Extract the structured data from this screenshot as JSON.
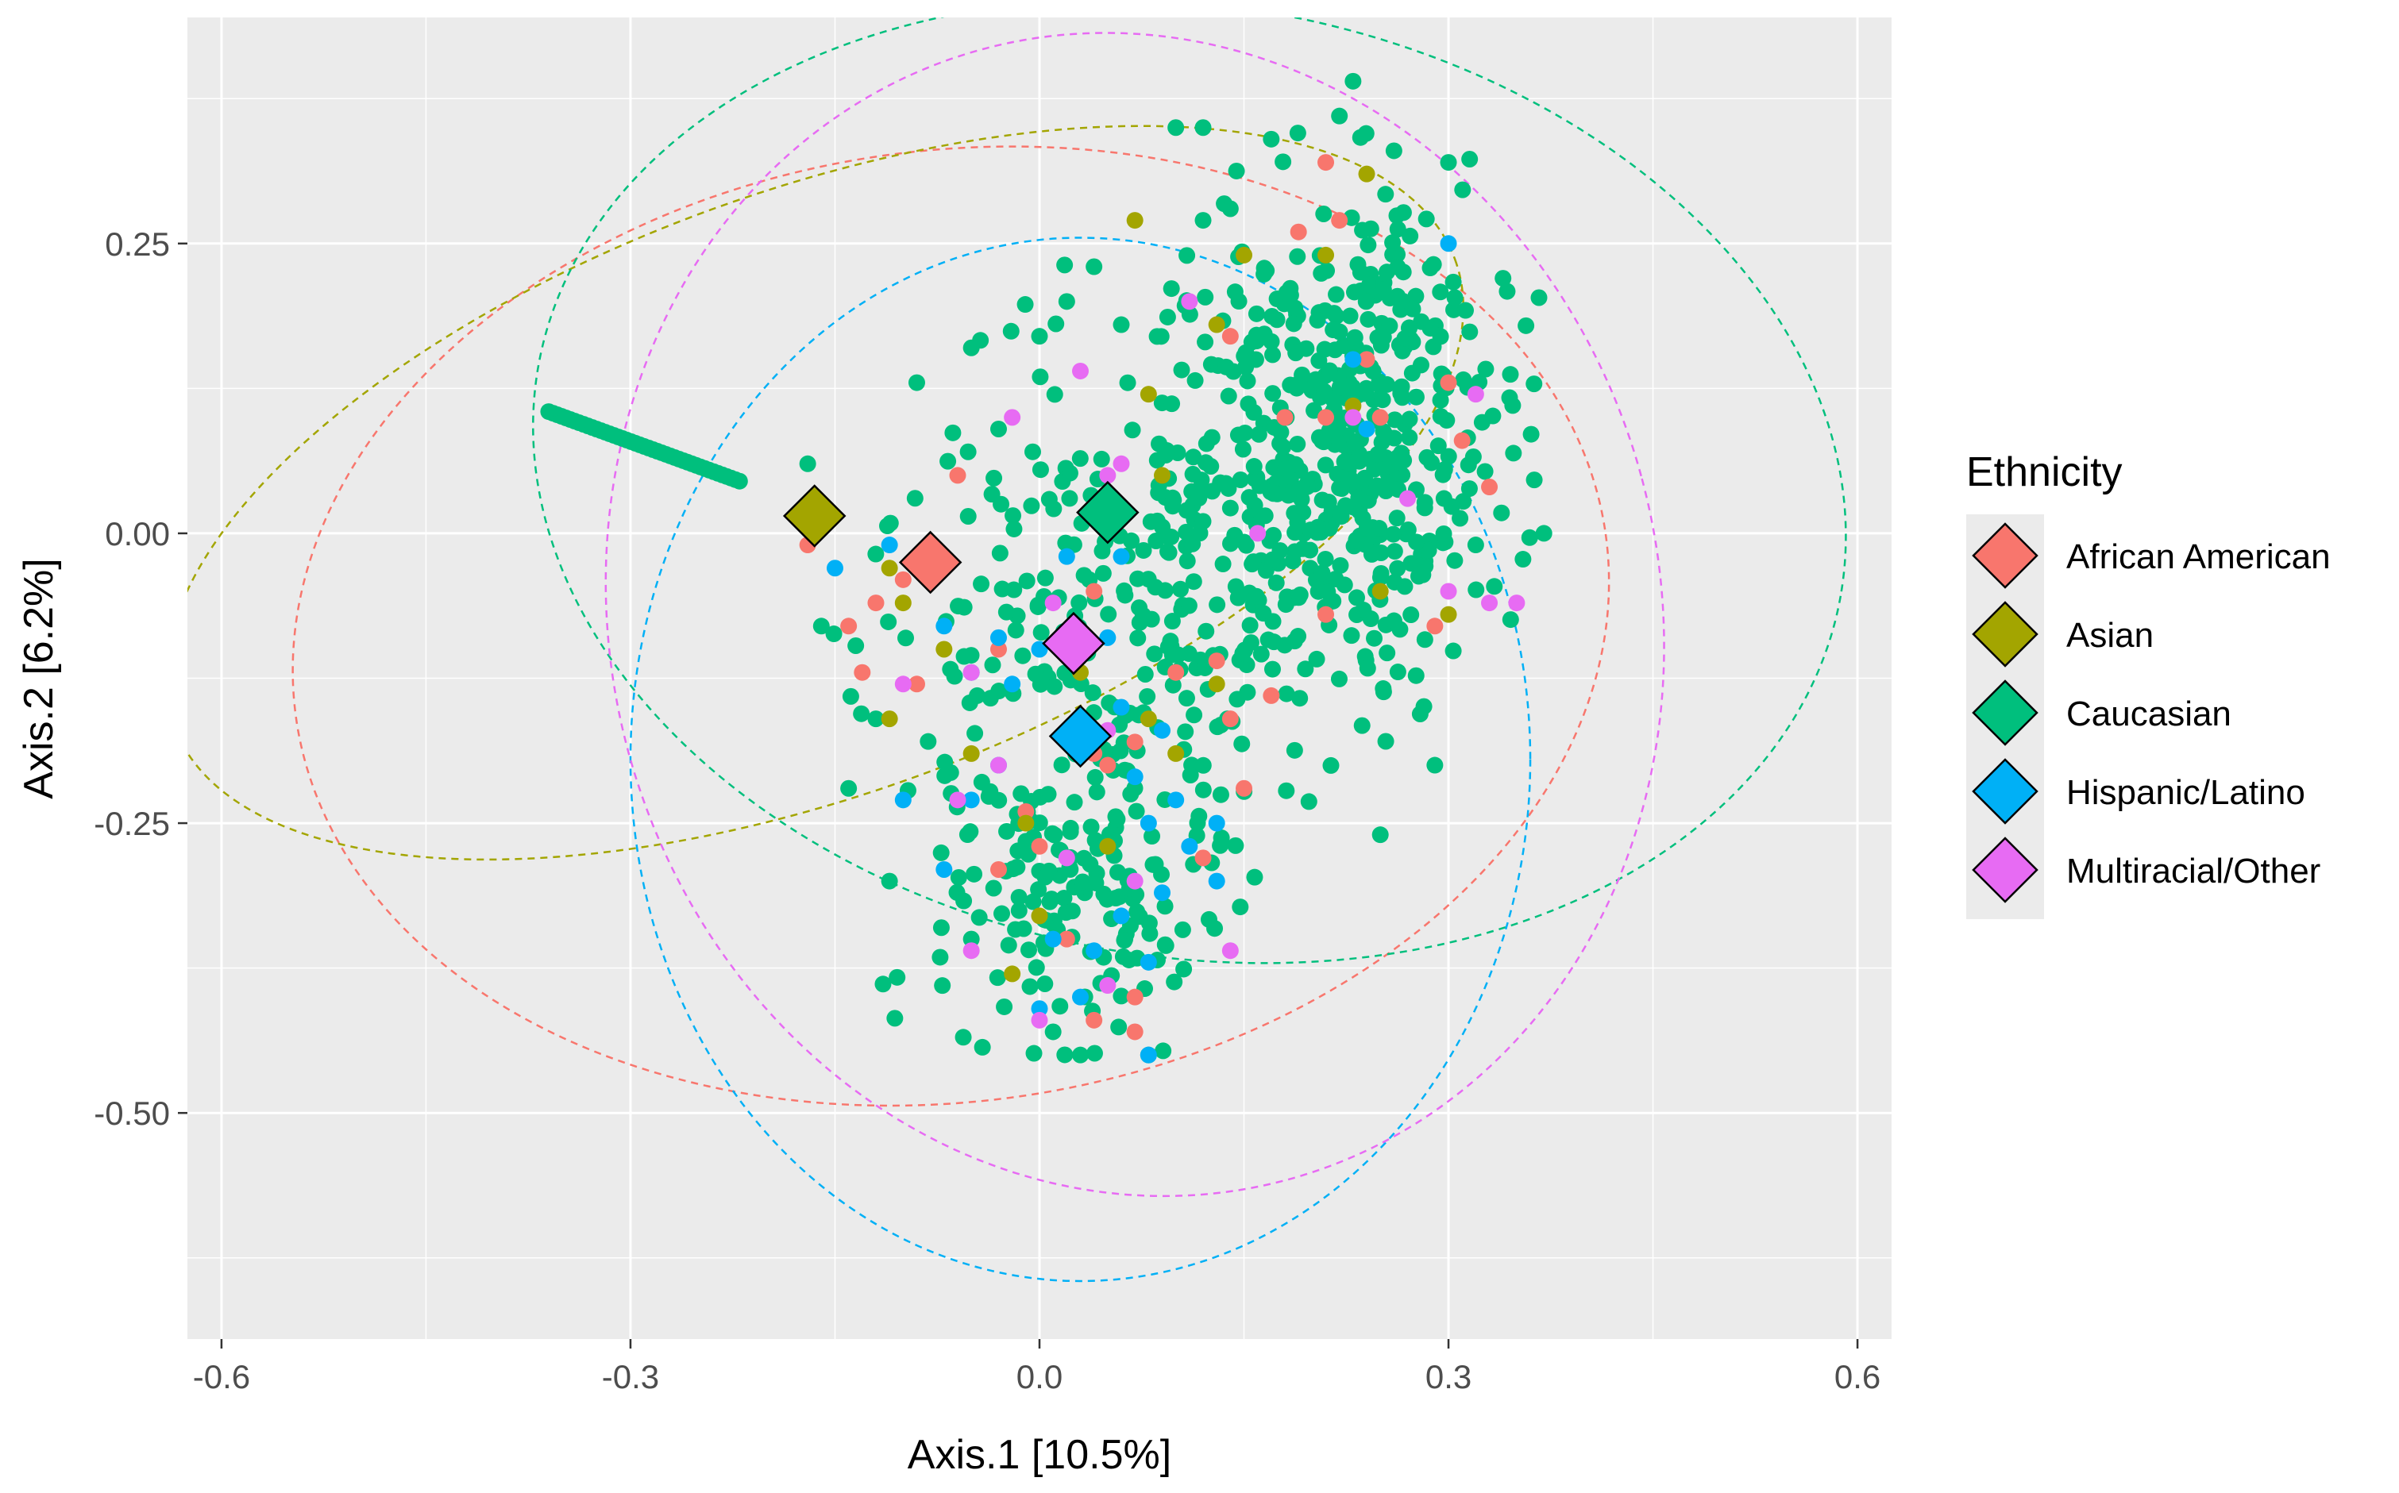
{
  "chart_data": {
    "type": "scatter",
    "xlabel": "Axis.1   [10.5%]",
    "ylabel": "Axis.2   [6.2%]",
    "xlim": [
      -0.625,
      0.625
    ],
    "ylim": [
      -0.695,
      0.445
    ],
    "x_ticks": [
      -0.6,
      -0.3,
      0.0,
      0.3,
      0.6
    ],
    "x_tick_labels": [
      "-0.6",
      "-0.3",
      "0.0",
      "0.3",
      "0.6"
    ],
    "y_ticks": [
      0.25,
      0.0,
      -0.25,
      -0.5
    ],
    "y_tick_labels": [
      "0.25",
      "0.00",
      "-0.25",
      "-0.50"
    ],
    "grid": true,
    "legend": {
      "title": "Ethnicity",
      "position": "right"
    },
    "series": [
      {
        "name": "African American",
        "color": "#F8766D",
        "centroid": [
          -0.08,
          -0.025
        ],
        "ellipse": {
          "cx": -0.065,
          "cy": -0.08,
          "rx": 0.485,
          "ry": 0.41,
          "angle_deg": -8
        },
        "points": [
          [
            -0.06,
            0.05
          ],
          [
            -0.17,
            -0.01
          ],
          [
            -0.12,
            -0.06
          ],
          [
            -0.14,
            -0.08
          ],
          [
            -0.13,
            -0.12
          ],
          [
            -0.09,
            -0.13
          ],
          [
            -0.03,
            -0.1
          ],
          [
            0.04,
            -0.05
          ],
          [
            0.1,
            -0.12
          ],
          [
            0.14,
            0.17
          ],
          [
            0.18,
            0.1
          ],
          [
            0.21,
            0.32
          ],
          [
            0.19,
            0.26
          ],
          [
            0.22,
            0.27
          ],
          [
            0.24,
            0.15
          ],
          [
            0.25,
            0.1
          ],
          [
            0.3,
            0.13
          ],
          [
            0.31,
            0.08
          ],
          [
            0.33,
            0.04
          ],
          [
            0.29,
            -0.08
          ],
          [
            0.21,
            -0.07
          ],
          [
            0.17,
            -0.14
          ],
          [
            0.07,
            -0.18
          ],
          [
            0.04,
            -0.19
          ],
          [
            -0.01,
            -0.24
          ],
          [
            0.0,
            -0.27
          ],
          [
            0.02,
            -0.35
          ],
          [
            0.07,
            -0.4
          ],
          [
            0.04,
            -0.42
          ],
          [
            -0.03,
            -0.29
          ],
          [
            0.12,
            -0.28
          ],
          [
            0.15,
            -0.22
          ],
          [
            0.13,
            -0.11
          ],
          [
            0.21,
            0.1
          ],
          [
            0.07,
            -0.43
          ],
          [
            0.05,
            -0.2
          ],
          [
            -0.1,
            -0.04
          ],
          [
            0.14,
            -0.16
          ]
        ]
      },
      {
        "name": "Asian",
        "color": "#A3A500",
        "centroid": [
          -0.165,
          0.015
        ],
        "ellipse": {
          "cx": -0.165,
          "cy": 0.035,
          "rx": 0.5,
          "ry": 0.26,
          "angle_deg": -20
        },
        "points": [
          [
            0.07,
            0.27
          ],
          [
            0.15,
            0.24
          ],
          [
            0.21,
            0.24
          ],
          [
            0.24,
            0.31
          ],
          [
            0.13,
            0.18
          ],
          [
            0.08,
            0.12
          ],
          [
            -0.11,
            -0.03
          ],
          [
            -0.1,
            -0.06
          ],
          [
            -0.07,
            -0.1
          ],
          [
            0.03,
            -0.12
          ],
          [
            0.08,
            -0.16
          ],
          [
            -0.02,
            -0.38
          ],
          [
            0.0,
            -0.33
          ],
          [
            0.1,
            -0.19
          ],
          [
            0.13,
            -0.13
          ],
          [
            0.25,
            -0.05
          ],
          [
            0.3,
            -0.07
          ],
          [
            -0.01,
            -0.25
          ],
          [
            0.23,
            0.11
          ],
          [
            -0.11,
            -0.16
          ],
          [
            0.09,
            0.05
          ],
          [
            0.05,
            -0.27
          ],
          [
            -0.05,
            -0.19
          ]
        ]
      },
      {
        "name": "Caucasian",
        "color": "#00BF7D",
        "centroid": [
          0.05,
          0.018
        ],
        "ellipse": {
          "cx": 0.11,
          "cy": 0.045,
          "rx": 0.485,
          "ry": 0.41,
          "angle_deg": 10
        },
        "trail": {
          "from": [
            -0.36,
            0.105
          ],
          "to": [
            -0.22,
            0.045
          ],
          "count": 45
        },
        "clusters": [
          {
            "cx": 0.23,
            "cy": 0.08,
            "sx": 0.055,
            "sy": 0.1,
            "n": 430
          },
          {
            "cx": 0.12,
            "cy": 0.0,
            "sx": 0.07,
            "sy": 0.12,
            "n": 180
          },
          {
            "cx": 0.02,
            "cy": -0.1,
            "sx": 0.07,
            "sy": 0.1,
            "n": 110
          },
          {
            "cx": 0.03,
            "cy": -0.3,
            "sx": 0.055,
            "sy": 0.07,
            "n": 170
          }
        ],
        "points": [
          [
            0.23,
            0.39
          ],
          [
            0.1,
            0.35
          ],
          [
            0.12,
            0.35
          ],
          [
            0.17,
            0.34
          ],
          [
            0.22,
            0.36
          ],
          [
            0.26,
            0.33
          ],
          [
            0.3,
            0.32
          ],
          [
            0.12,
            0.27
          ],
          [
            -0.05,
            0.16
          ],
          [
            -0.09,
            0.13
          ],
          [
            -0.03,
            0.09
          ],
          [
            0.0,
            0.17
          ],
          [
            0.02,
            0.2
          ],
          [
            0.04,
            0.23
          ],
          [
            0.06,
            0.18
          ],
          [
            -0.17,
            0.06
          ],
          [
            -0.16,
            -0.08
          ],
          [
            -0.12,
            -0.16
          ],
          [
            -0.14,
            -0.22
          ],
          [
            -0.11,
            -0.3
          ],
          [
            0.25,
            -0.26
          ],
          [
            0.29,
            -0.2
          ],
          [
            0.37,
            0.0
          ],
          [
            0.08,
            -0.45
          ],
          [
            0.03,
            -0.45
          ],
          [
            0.01,
            -0.43
          ],
          [
            -0.05,
            -0.35
          ],
          [
            0.34,
            0.22
          ],
          [
            0.32,
            -0.01
          ],
          [
            0.14,
            0.28
          ]
        ]
      },
      {
        "name": "Hispanic/Latino",
        "color": "#00B0F6",
        "centroid": [
          0.03,
          -0.175
        ],
        "ellipse": {
          "cx": 0.03,
          "cy": -0.195,
          "rx": 0.33,
          "ry": 0.45,
          "angle_deg": 0
        },
        "points": [
          [
            -0.11,
            -0.01
          ],
          [
            -0.07,
            -0.08
          ],
          [
            -0.03,
            -0.09
          ],
          [
            -0.05,
            -0.12
          ],
          [
            -0.02,
            -0.13
          ],
          [
            0.0,
            -0.1
          ],
          [
            0.02,
            -0.02
          ],
          [
            0.05,
            -0.09
          ],
          [
            0.06,
            -0.15
          ],
          [
            0.07,
            -0.21
          ],
          [
            0.08,
            -0.25
          ],
          [
            0.1,
            -0.23
          ],
          [
            0.11,
            -0.27
          ],
          [
            0.13,
            -0.3
          ],
          [
            0.13,
            -0.25
          ],
          [
            0.09,
            -0.31
          ],
          [
            0.06,
            -0.33
          ],
          [
            0.04,
            -0.36
          ],
          [
            0.01,
            -0.35
          ],
          [
            0.0,
            -0.41
          ],
          [
            0.03,
            -0.4
          ],
          [
            0.08,
            -0.37
          ],
          [
            -0.07,
            -0.29
          ],
          [
            -0.05,
            -0.23
          ],
          [
            -0.15,
            -0.03
          ],
          [
            -0.1,
            -0.23
          ],
          [
            0.3,
            0.25
          ],
          [
            0.23,
            0.15
          ],
          [
            0.24,
            0.09
          ],
          [
            0.08,
            -0.45
          ],
          [
            -0.03,
            -0.2
          ],
          [
            0.06,
            -0.02
          ],
          [
            0.02,
            -0.17
          ],
          [
            0.09,
            -0.17
          ]
        ]
      },
      {
        "name": "Multiracial/Other",
        "color": "#E76BF3",
        "centroid": [
          0.025,
          -0.095
        ],
        "ellipse": {
          "cx": 0.07,
          "cy": -0.07,
          "rx": 0.385,
          "ry": 0.505,
          "angle_deg": -15
        },
        "points": [
          [
            -0.02,
            0.1
          ],
          [
            0.03,
            0.14
          ],
          [
            0.06,
            0.06
          ],
          [
            0.11,
            0.2
          ],
          [
            0.23,
            0.1
          ],
          [
            0.32,
            0.12
          ],
          [
            0.3,
            -0.05
          ],
          [
            0.33,
            -0.06
          ],
          [
            0.35,
            -0.06
          ],
          [
            0.27,
            0.03
          ],
          [
            -0.05,
            -0.12
          ],
          [
            -0.06,
            -0.23
          ],
          [
            -0.03,
            -0.2
          ],
          [
            0.05,
            -0.17
          ],
          [
            0.05,
            -0.39
          ],
          [
            -0.05,
            -0.36
          ],
          [
            0.0,
            -0.42
          ],
          [
            0.14,
            -0.36
          ],
          [
            0.07,
            -0.3
          ],
          [
            0.02,
            -0.28
          ],
          [
            0.16,
            0.0
          ],
          [
            0.01,
            -0.06
          ],
          [
            0.05,
            0.05
          ],
          [
            -0.1,
            -0.13
          ]
        ]
      }
    ]
  }
}
